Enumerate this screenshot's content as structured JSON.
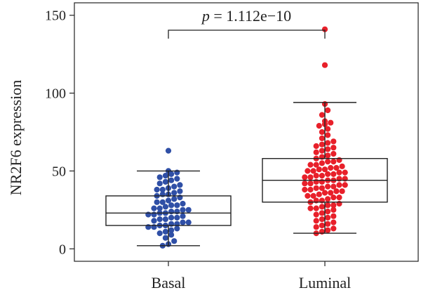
{
  "chart_data": {
    "type": "box-swarm",
    "title": "",
    "xlabel": "",
    "ylabel": "NR2F6 expression",
    "ylim": [
      -8,
      158
    ],
    "yticks": [
      0,
      50,
      100,
      150
    ],
    "categories": [
      "Basal",
      "Luminal"
    ],
    "annotation": {
      "prefix": "p",
      "text": " = 1.112e−10",
      "between": [
        "Basal",
        "Luminal"
      ]
    },
    "series": [
      {
        "color": "#2f4fa6",
        "box": {
          "whisker_low": 2,
          "q1": 15,
          "median": 23,
          "q3": 34,
          "whisker_high": 50
        },
        "values": [
          63,
          50,
          49,
          48,
          47,
          46,
          45,
          44,
          43,
          42,
          41,
          40,
          39,
          38,
          38,
          37,
          36,
          35,
          35,
          34,
          33,
          32,
          31,
          30,
          30,
          29,
          28,
          28,
          27,
          26,
          26,
          25,
          25,
          24,
          24,
          23,
          23,
          22,
          22,
          21,
          20,
          20,
          19,
          19,
          18,
          17,
          17,
          16,
          16,
          15,
          15,
          14,
          14,
          13,
          12,
          11,
          10,
          9,
          7,
          5,
          3,
          2
        ]
      },
      {
        "color": "#e8202a",
        "box": {
          "whisker_low": 10,
          "q1": 30,
          "median": 44,
          "q3": 58,
          "whisker_high": 94
        },
        "values": [
          141,
          118,
          93,
          89,
          86,
          82,
          81,
          80,
          79,
          77,
          75,
          73,
          71,
          69,
          68,
          67,
          66,
          65,
          64,
          63,
          62,
          61,
          60,
          59,
          58,
          57,
          56,
          56,
          55,
          54,
          54,
          53,
          52,
          52,
          51,
          51,
          50,
          50,
          49,
          49,
          48,
          48,
          47,
          47,
          46,
          46,
          45,
          45,
          44,
          44,
          43,
          43,
          42,
          42,
          41,
          41,
          40,
          40,
          39,
          39,
          38,
          38,
          37,
          37,
          36,
          36,
          35,
          34,
          34,
          33,
          33,
          32,
          31,
          31,
          30,
          29,
          28,
          28,
          27,
          26,
          26,
          25,
          24,
          23,
          22,
          21,
          20,
          19,
          18,
          17,
          16,
          15,
          14,
          13,
          12,
          11,
          10
        ]
      }
    ]
  }
}
